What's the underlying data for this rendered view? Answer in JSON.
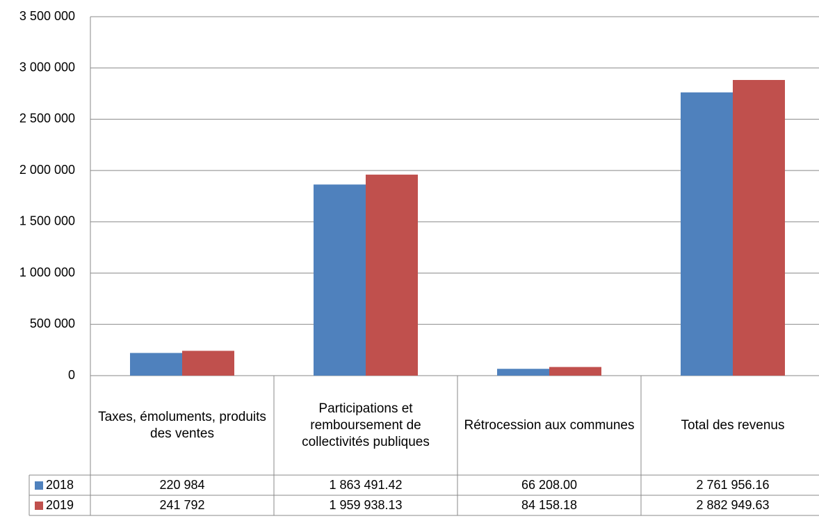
{
  "chart_data": {
    "type": "bar",
    "categories": [
      "Taxes, émoluments, produits des ventes",
      "Participations et remboursement de collectivités publiques",
      "Rétrocession aux communes",
      "Total des revenus"
    ],
    "series": [
      {
        "name": "2018",
        "color": "#4f81bd",
        "values": [
          220984,
          1863491.42,
          66208.0,
          2761956.16
        ],
        "value_labels": [
          "220 984",
          "1 863 491.42",
          "66 208.00",
          "2 761 956.16"
        ]
      },
      {
        "name": "2019",
        "color": "#c0504d",
        "values": [
          241792,
          1959938.13,
          84158.18,
          2882949.63
        ],
        "value_labels": [
          "241 792",
          "1 959 938.13",
          "84 158.18",
          "2 882 949.63"
        ]
      }
    ],
    "ylim": [
      0,
      3500000
    ],
    "yticks": [
      0,
      {
        "value": 500000,
        "label": "500 000"
      },
      {
        "value": 1000000,
        "label": "1 000 000"
      },
      {
        "value": 1500000,
        "label": "1 500 000"
      },
      {
        "value": 2000000,
        "label": "2 000 000"
      },
      {
        "value": 2500000,
        "label": "2 500 000"
      },
      {
        "value": 3000000,
        "label": "3 000 000"
      },
      {
        "value": 3500000,
        "label": "3 500 000"
      }
    ],
    "grid": true
  }
}
